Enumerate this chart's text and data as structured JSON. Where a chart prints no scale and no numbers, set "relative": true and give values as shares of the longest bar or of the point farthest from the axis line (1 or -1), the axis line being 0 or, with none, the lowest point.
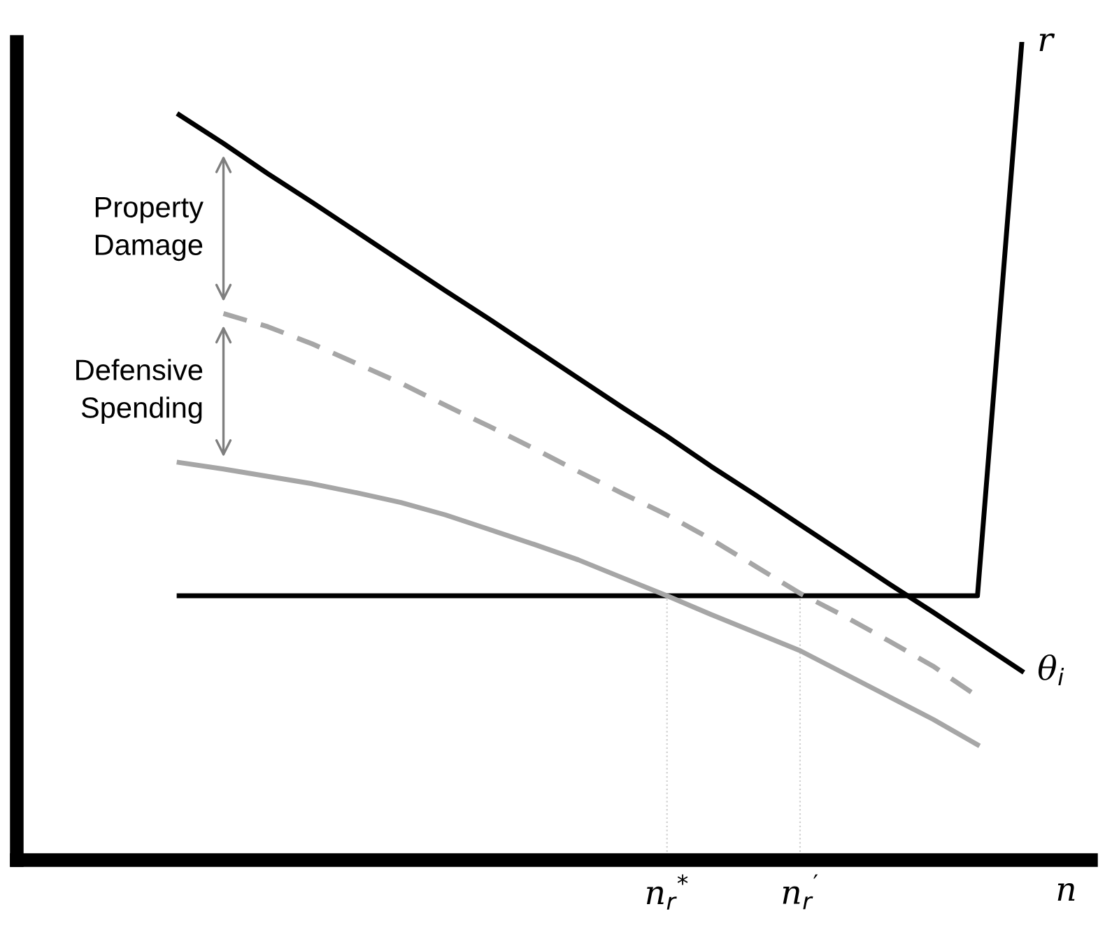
{
  "chart_data": {
    "type": "line",
    "relative": true,
    "tick_labels": "x",
    "categories": [
      null,
      null,
      null,
      null,
      null,
      null,
      null,
      null,
      null,
      null,
      null,
      "n$_{r}$$^{*}$",
      null,
      null,
      "n$_{r}$$^{′}$",
      null,
      null,
      null,
      null,
      null,
      "n"
    ],
    "series": [
      {
        "name": "θ$_{i}$",
        "color": "#000000",
        "line_style": "solid",
        "values": [
          0.911,
          0.876,
          0.839,
          0.804,
          0.768,
          0.732,
          0.696,
          0.661,
          0.625,
          0.589,
          0.553,
          0.518,
          0.481,
          0.446,
          0.41,
          0.374,
          0.338,
          0.303,
          0.267,
          0.231,
          null
        ]
      },
      {
        "name": "r",
        "color": "#000000",
        "line_style": "solid",
        "values": [
          0.323,
          0.323,
          0.323,
          0.323,
          0.323,
          0.323,
          0.323,
          0.323,
          0.323,
          0.323,
          0.323,
          0.323,
          0.323,
          0.323,
          0.323,
          0.323,
          0.323,
          0.323,
          0.323,
          1.0,
          null
        ]
      },
      {
        "color": "#a6a6a6",
        "line_style": "dashed",
        "values": [
          null,
          0.668,
          0.652,
          0.631,
          0.607,
          0.583,
          0.556,
          0.53,
          0.503,
          0.475,
          0.448,
          0.422,
          0.392,
          0.359,
          0.326,
          0.298,
          0.268,
          0.237,
          0.2,
          null,
          null
        ]
      },
      {
        "color": "#a6a6a6",
        "line_style": "solid",
        "values": [
          0.486,
          0.478,
          0.469,
          0.46,
          0.449,
          0.437,
          0.422,
          0.404,
          0.386,
          0.367,
          0.345,
          0.323,
          0.3,
          0.278,
          0.256,
          0.228,
          0.2,
          0.172,
          0.141,
          null,
          null
        ]
      }
    ],
    "ref_lines": [
      {
        "axis": "x",
        "value": "n$_{r}$$^{*}$",
        "color": "#d0d0d0",
        "line_style": "dotted"
      },
      {
        "axis": "x",
        "value": "n$_{r}$$^{′}$",
        "color": "#d0d0d0",
        "line_style": "dotted"
      }
    ],
    "annotations": [
      "Property\nDamage",
      "Defensive\nSpending"
    ]
  }
}
